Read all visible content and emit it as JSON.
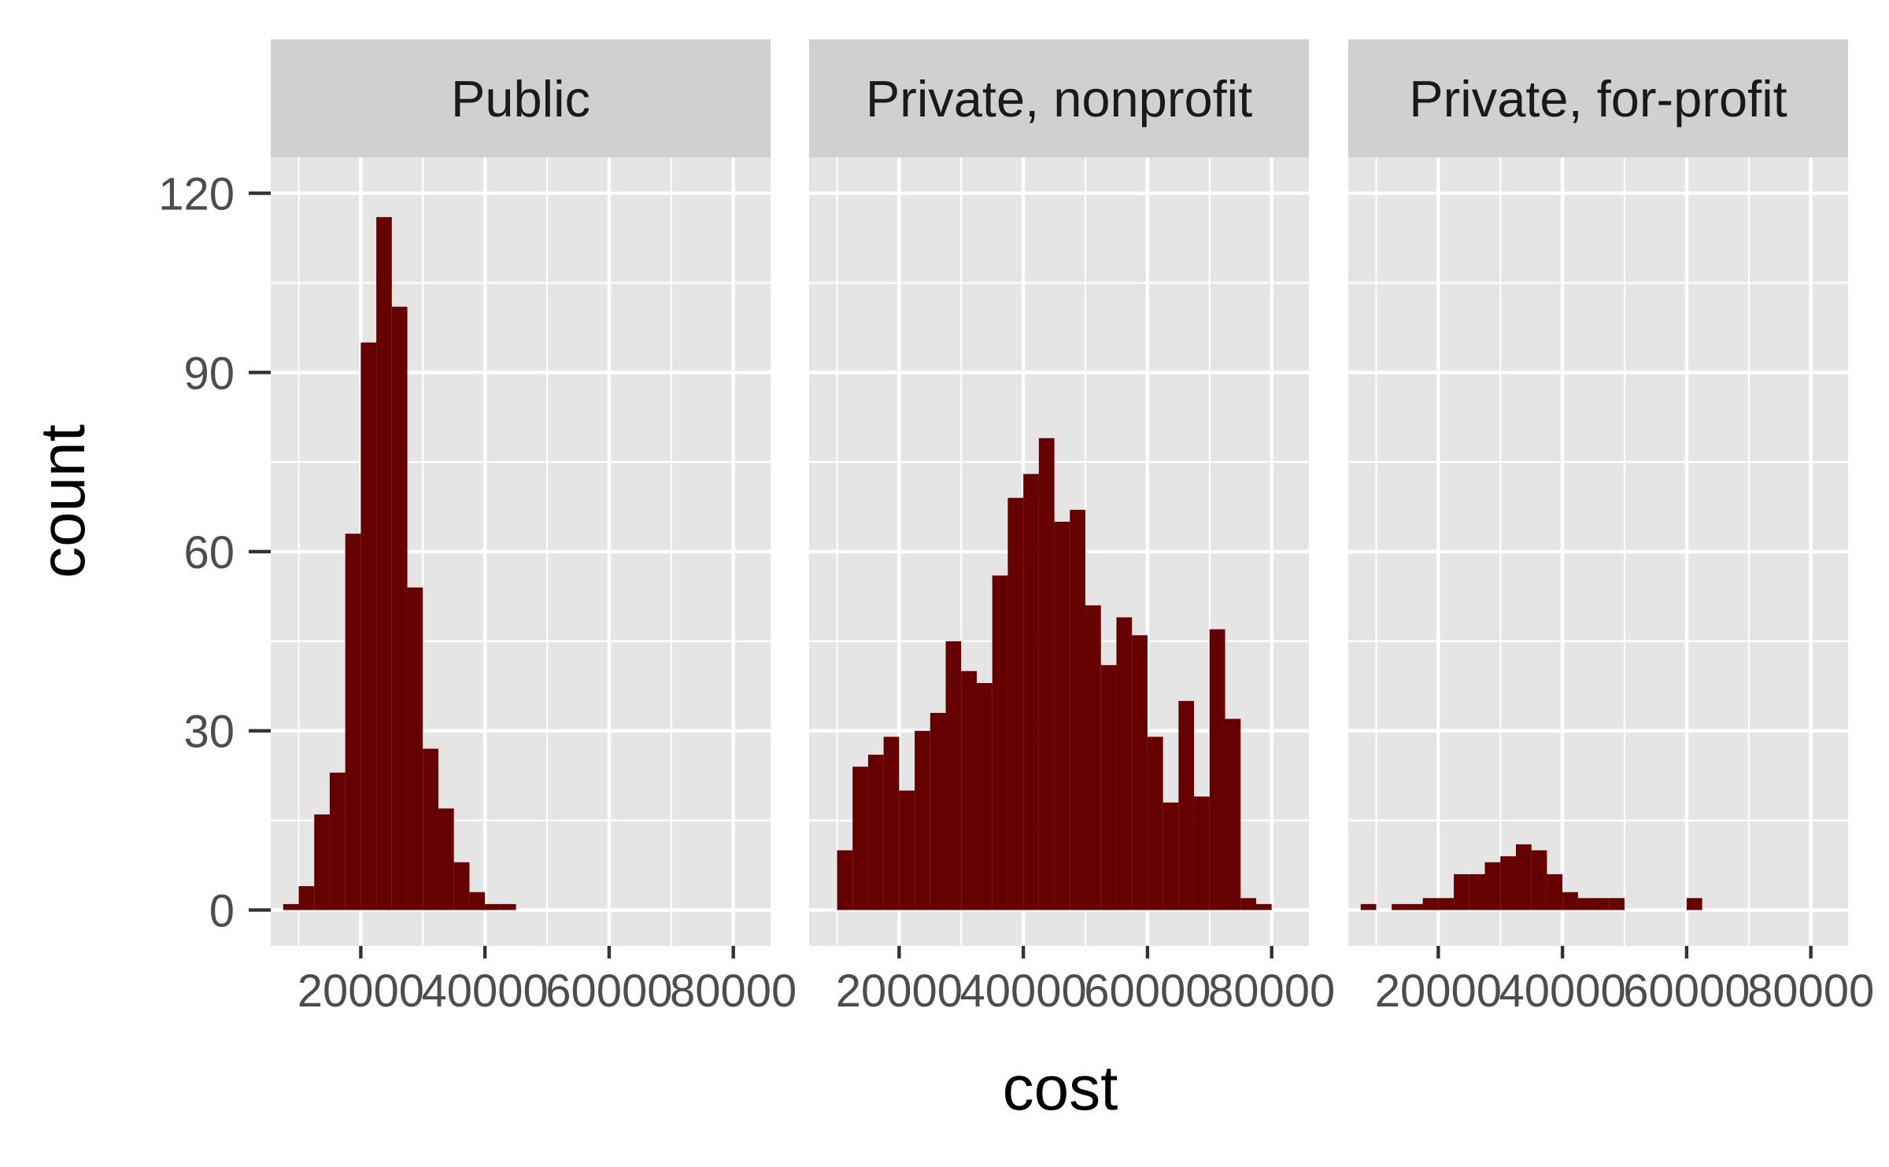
{
  "chart_data": {
    "type": "bar",
    "subtype": "faceted-histogram",
    "xlabel": "cost",
    "ylabel": "count",
    "x_ticks": [
      20000,
      40000,
      60000,
      80000
    ],
    "x_tick_labels": [
      "20000",
      "40000",
      "60000",
      "80000"
    ],
    "y_ticks": [
      0,
      30,
      60,
      90,
      120
    ],
    "y_tick_labels": [
      "0",
      "30",
      "60",
      "90",
      "120"
    ],
    "xlim": [
      5500,
      86000
    ],
    "ylim": [
      -6,
      126
    ],
    "bin_width": 2500,
    "grid": true,
    "bar_color": "#660000",
    "panel_background": "#e5e5e5",
    "strip_background": "#d0d0d0",
    "gridline_color": "#ffffff",
    "panels": [
      {
        "name": "Public",
        "bins": [
          {
            "x": 8750,
            "count": 1
          },
          {
            "x": 11250,
            "count": 4
          },
          {
            "x": 13750,
            "count": 16
          },
          {
            "x": 16250,
            "count": 23
          },
          {
            "x": 18750,
            "count": 63
          },
          {
            "x": 21250,
            "count": 95
          },
          {
            "x": 23750,
            "count": 116
          },
          {
            "x": 26250,
            "count": 101
          },
          {
            "x": 28750,
            "count": 54
          },
          {
            "x": 31250,
            "count": 27
          },
          {
            "x": 33750,
            "count": 17
          },
          {
            "x": 36250,
            "count": 8
          },
          {
            "x": 38750,
            "count": 3
          },
          {
            "x": 41250,
            "count": 1
          },
          {
            "x": 43750,
            "count": 1
          }
        ]
      },
      {
        "name": "Private, nonprofit",
        "bins": [
          {
            "x": 11250,
            "count": 10
          },
          {
            "x": 13750,
            "count": 24
          },
          {
            "x": 16250,
            "count": 26
          },
          {
            "x": 18750,
            "count": 29
          },
          {
            "x": 21250,
            "count": 20
          },
          {
            "x": 23750,
            "count": 30
          },
          {
            "x": 26250,
            "count": 33
          },
          {
            "x": 28750,
            "count": 45
          },
          {
            "x": 31250,
            "count": 40
          },
          {
            "x": 33750,
            "count": 38
          },
          {
            "x": 36250,
            "count": 56
          },
          {
            "x": 38750,
            "count": 69
          },
          {
            "x": 41250,
            "count": 73
          },
          {
            "x": 43750,
            "count": 79
          },
          {
            "x": 46250,
            "count": 65
          },
          {
            "x": 48750,
            "count": 67
          },
          {
            "x": 51250,
            "count": 51
          },
          {
            "x": 53750,
            "count": 41
          },
          {
            "x": 56250,
            "count": 49
          },
          {
            "x": 58750,
            "count": 46
          },
          {
            "x": 61250,
            "count": 29
          },
          {
            "x": 63750,
            "count": 18
          },
          {
            "x": 66250,
            "count": 35
          },
          {
            "x": 68750,
            "count": 19
          },
          {
            "x": 71250,
            "count": 47
          },
          {
            "x": 73750,
            "count": 32
          },
          {
            "x": 76250,
            "count": 2
          },
          {
            "x": 78750,
            "count": 1
          }
        ]
      },
      {
        "name": "Private, for-profit",
        "bins": [
          {
            "x": 8750,
            "count": 1
          },
          {
            "x": 13750,
            "count": 1
          },
          {
            "x": 16250,
            "count": 1
          },
          {
            "x": 18750,
            "count": 2
          },
          {
            "x": 21250,
            "count": 2
          },
          {
            "x": 23750,
            "count": 6
          },
          {
            "x": 26250,
            "count": 6
          },
          {
            "x": 28750,
            "count": 8
          },
          {
            "x": 31250,
            "count": 9
          },
          {
            "x": 33750,
            "count": 11
          },
          {
            "x": 36250,
            "count": 10
          },
          {
            "x": 38750,
            "count": 6
          },
          {
            "x": 41250,
            "count": 3
          },
          {
            "x": 43750,
            "count": 2
          },
          {
            "x": 46250,
            "count": 2
          },
          {
            "x": 48750,
            "count": 2
          },
          {
            "x": 61250,
            "count": 2
          }
        ]
      }
    ]
  }
}
